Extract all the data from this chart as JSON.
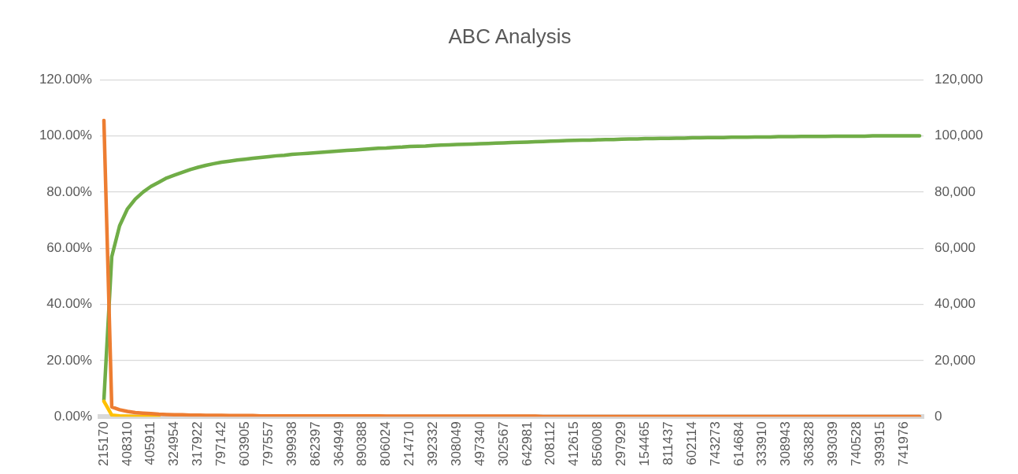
{
  "chart_data": {
    "type": "line",
    "title": "ABC Analysis",
    "categories": [
      "215170",
      null,
      null,
      "408310",
      null,
      null,
      "405911",
      null,
      null,
      "324954",
      null,
      null,
      "317922",
      null,
      null,
      "797142",
      null,
      null,
      "603905",
      null,
      null,
      "797557",
      null,
      null,
      "399938",
      null,
      null,
      "862397",
      null,
      null,
      "364949",
      null,
      null,
      "890388",
      null,
      null,
      "806024",
      null,
      null,
      "214710",
      null,
      null,
      "392332",
      null,
      null,
      "308049",
      null,
      null,
      "497340",
      null,
      null,
      "302567",
      null,
      null,
      "642981",
      null,
      null,
      "208112",
      null,
      null,
      "412615",
      null,
      null,
      "856008",
      null,
      null,
      "297929",
      null,
      null,
      "154465",
      null,
      null,
      "811437",
      null,
      null,
      "602114",
      null,
      null,
      "743273",
      null,
      null,
      "614684",
      null,
      null,
      "333910",
      null,
      null,
      "308943",
      null,
      null,
      "363828",
      null,
      null,
      "393039",
      null,
      null,
      "740528",
      null,
      null,
      "393915",
      null,
      null,
      "741976",
      null,
      null
    ],
    "series": [
      {
        "color": "#70ad47",
        "values": [
          6,
          57,
          68,
          74,
          77.5,
          80,
          82,
          83.5,
          85,
          86,
          87,
          88,
          88.8,
          89.5,
          90.1,
          90.6,
          91,
          91.4,
          91.7,
          92,
          92.3,
          92.6,
          92.9,
          93.1,
          93.4,
          93.6,
          93.8,
          94,
          94.2,
          94.4,
          94.6,
          94.8,
          95,
          95.2,
          95.4,
          95.6,
          95.7,
          95.9,
          96,
          96.2,
          96.3,
          96.4,
          96.6,
          96.7,
          96.8,
          96.9,
          97,
          97.1,
          97.2,
          97.3,
          97.4,
          97.5,
          97.6,
          97.7,
          97.8,
          97.9,
          98,
          98.1,
          98.2,
          98.3,
          98.4,
          98.5,
          98.5,
          98.6,
          98.7,
          98.7,
          98.8,
          98.9,
          98.9,
          99,
          99,
          99.1,
          99.1,
          99.2,
          99.2,
          99.3,
          99.3,
          99.4,
          99.4,
          99.4,
          99.5,
          99.5,
          99.5,
          99.6,
          99.6,
          99.6,
          99.7,
          99.7,
          99.7,
          99.8,
          99.8,
          99.8,
          99.8,
          99.9,
          99.9,
          99.9,
          99.9,
          99.9,
          100,
          100,
          100,
          100,
          100,
          100,
          100
        ]
      },
      {
        "color": "#ffc000",
        "values": [
          5.5,
          0.6,
          0.3,
          0.2,
          0.1,
          0.1,
          0.1,
          0.1,
          null,
          null,
          null,
          null,
          null,
          null,
          null,
          null,
          null,
          null,
          null,
          null,
          null,
          null,
          null,
          null,
          null,
          null,
          null,
          null,
          null,
          null,
          null,
          null,
          null,
          null,
          null,
          null,
          null,
          null,
          null,
          null,
          null,
          null,
          null,
          null,
          null,
          null,
          null,
          null,
          null,
          null,
          null,
          null,
          null,
          null,
          null,
          null,
          null,
          null,
          null,
          null,
          null,
          null,
          null,
          null,
          null,
          null,
          null,
          null,
          null,
          null,
          null,
          null,
          null,
          null,
          null,
          null,
          null,
          null,
          null,
          null,
          null,
          null,
          null,
          null,
          null,
          null,
          null,
          null,
          null,
          null,
          null,
          null,
          null,
          null,
          null,
          null,
          null,
          null,
          null,
          null,
          null,
          null,
          null,
          null,
          null
        ]
      },
      {
        "color": "#ed7d31",
        "axis": "y2",
        "values": [
          105500,
          3500,
          2500,
          1900,
          1500,
          1300,
          1100,
          900,
          800,
          700,
          700,
          600,
          600,
          500,
          500,
          500,
          400,
          400,
          400,
          400,
          300,
          300,
          300,
          300,
          300,
          300,
          300,
          300,
          300,
          300,
          300,
          300,
          300,
          300,
          300,
          300,
          200,
          200,
          200,
          200,
          200,
          200,
          200,
          200,
          200,
          200,
          200,
          200,
          200,
          200,
          200,
          200,
          200,
          200,
          200,
          200,
          100,
          100,
          100,
          100,
          100,
          100,
          100,
          100,
          100,
          100,
          100,
          100,
          100,
          100,
          100,
          100,
          100,
          100,
          100,
          100,
          100,
          100,
          100,
          100,
          100,
          100,
          100,
          100,
          100,
          100,
          100,
          100,
          100,
          100,
          100,
          100,
          100,
          100,
          100,
          100,
          100,
          100,
          100,
          100,
          100,
          100,
          100,
          100,
          100
        ]
      }
    ],
    "ylim": [
      0,
      120
    ],
    "yticks": [
      {
        "value": 0,
        "label": "0.00%"
      },
      {
        "value": 20,
        "label": "20.00%"
      },
      {
        "value": 40,
        "label": "40.00%"
      },
      {
        "value": 60,
        "label": "60.00%"
      },
      {
        "value": 80,
        "label": "80.00%"
      },
      {
        "value": 100,
        "label": "100.00%"
      },
      {
        "value": 120,
        "label": "120.00%"
      }
    ],
    "y2lim": [
      0,
      120000
    ],
    "y2ticks": [
      {
        "value": 0,
        "label": "0"
      },
      {
        "value": 20000,
        "label": "20,000"
      },
      {
        "value": 40000,
        "label": "40,000"
      },
      {
        "value": 60000,
        "label": "60,000"
      },
      {
        "value": 80000,
        "label": "80,000"
      },
      {
        "value": 100000,
        "label": "100,000"
      },
      {
        "value": 120000,
        "label": "120,000"
      }
    ],
    "grid": "y",
    "legend": false,
    "marker": "none",
    "line_style": "solid"
  }
}
